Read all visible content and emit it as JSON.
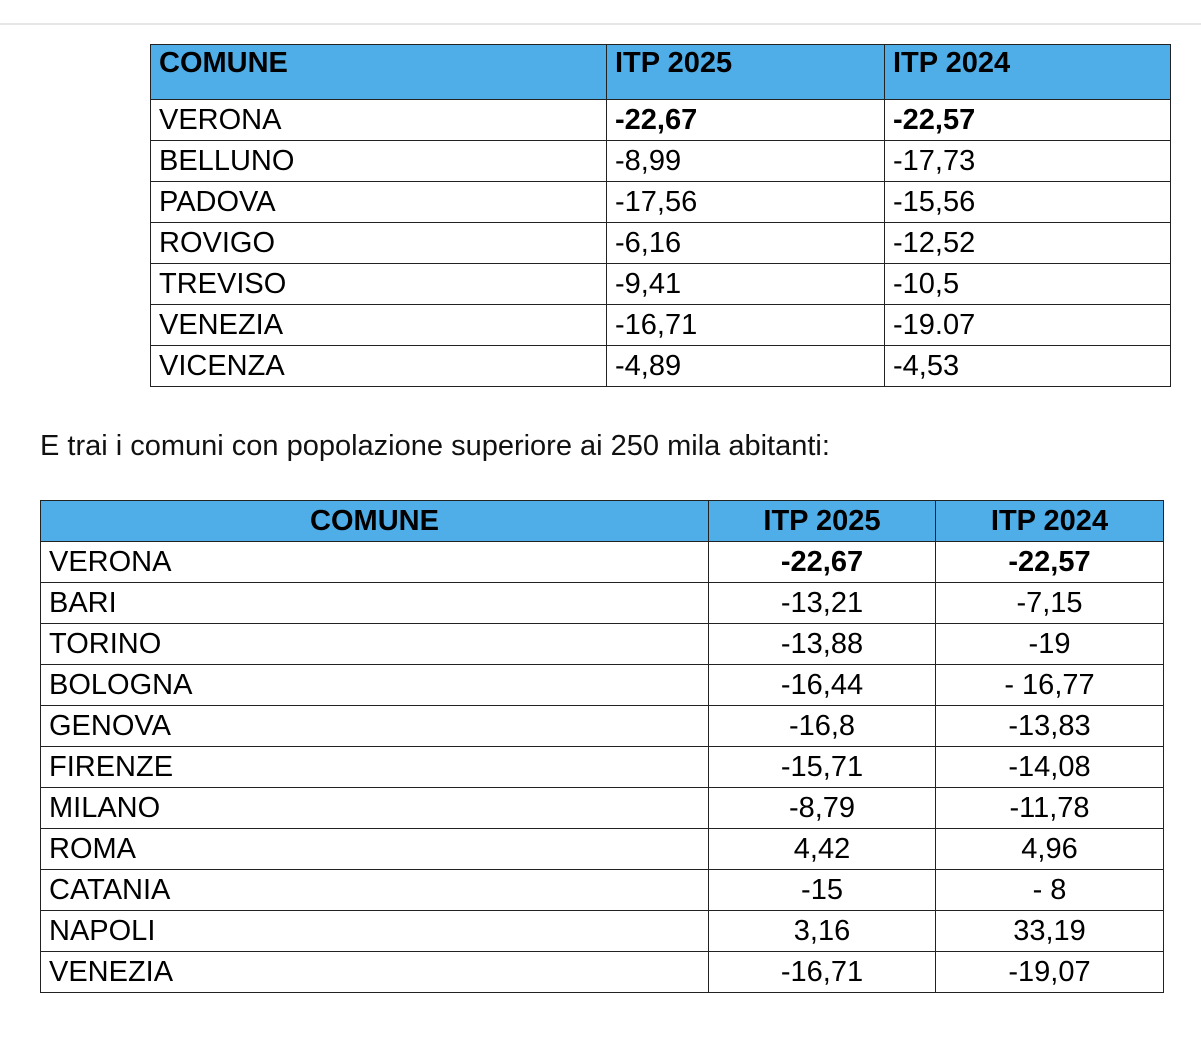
{
  "table1": {
    "header": [
      "COMUNE",
      "ITP 2025",
      "ITP 2024"
    ],
    "rows": [
      [
        "VERONA",
        "-22,67",
        "-22,57"
      ],
      [
        "BELLUNO",
        "-8,99",
        "-17,73"
      ],
      [
        "PADOVA",
        "-17,56",
        "-15,56"
      ],
      [
        "ROVIGO",
        "-6,16",
        "-12,52"
      ],
      [
        "TREVISO",
        "-9,41",
        "-10,5"
      ],
      [
        "VENEZIA",
        "-16,71",
        "-19.07"
      ],
      [
        "VICENZA",
        "-4,89",
        "-4,53"
      ]
    ]
  },
  "intro_text": "E trai i comuni con popolazione superiore ai 250 mila abitanti:",
  "table2": {
    "header": [
      "COMUNE",
      "ITP 2025",
      "ITP 2024"
    ],
    "rows": [
      [
        "VERONA",
        "-22,67",
        "-22,57"
      ],
      [
        "BARI",
        "-13,21",
        "-7,15"
      ],
      [
        "TORINO",
        "-13,88",
        "-19"
      ],
      [
        "BOLOGNA",
        "-16,44",
        "- 16,77"
      ],
      [
        "GENOVA",
        "-16,8",
        "-13,83"
      ],
      [
        "FIRENZE",
        "-15,71",
        "-14,08"
      ],
      [
        "MILANO",
        "-8,79",
        "-11,78"
      ],
      [
        "ROMA",
        "4,42",
        "4,96"
      ],
      [
        "CATANIA",
        "-15",
        "- 8"
      ],
      [
        "NAPOLI",
        "3,16",
        "33,19"
      ],
      [
        "VENEZIA",
        "-16,71",
        "-19,07"
      ]
    ]
  }
}
